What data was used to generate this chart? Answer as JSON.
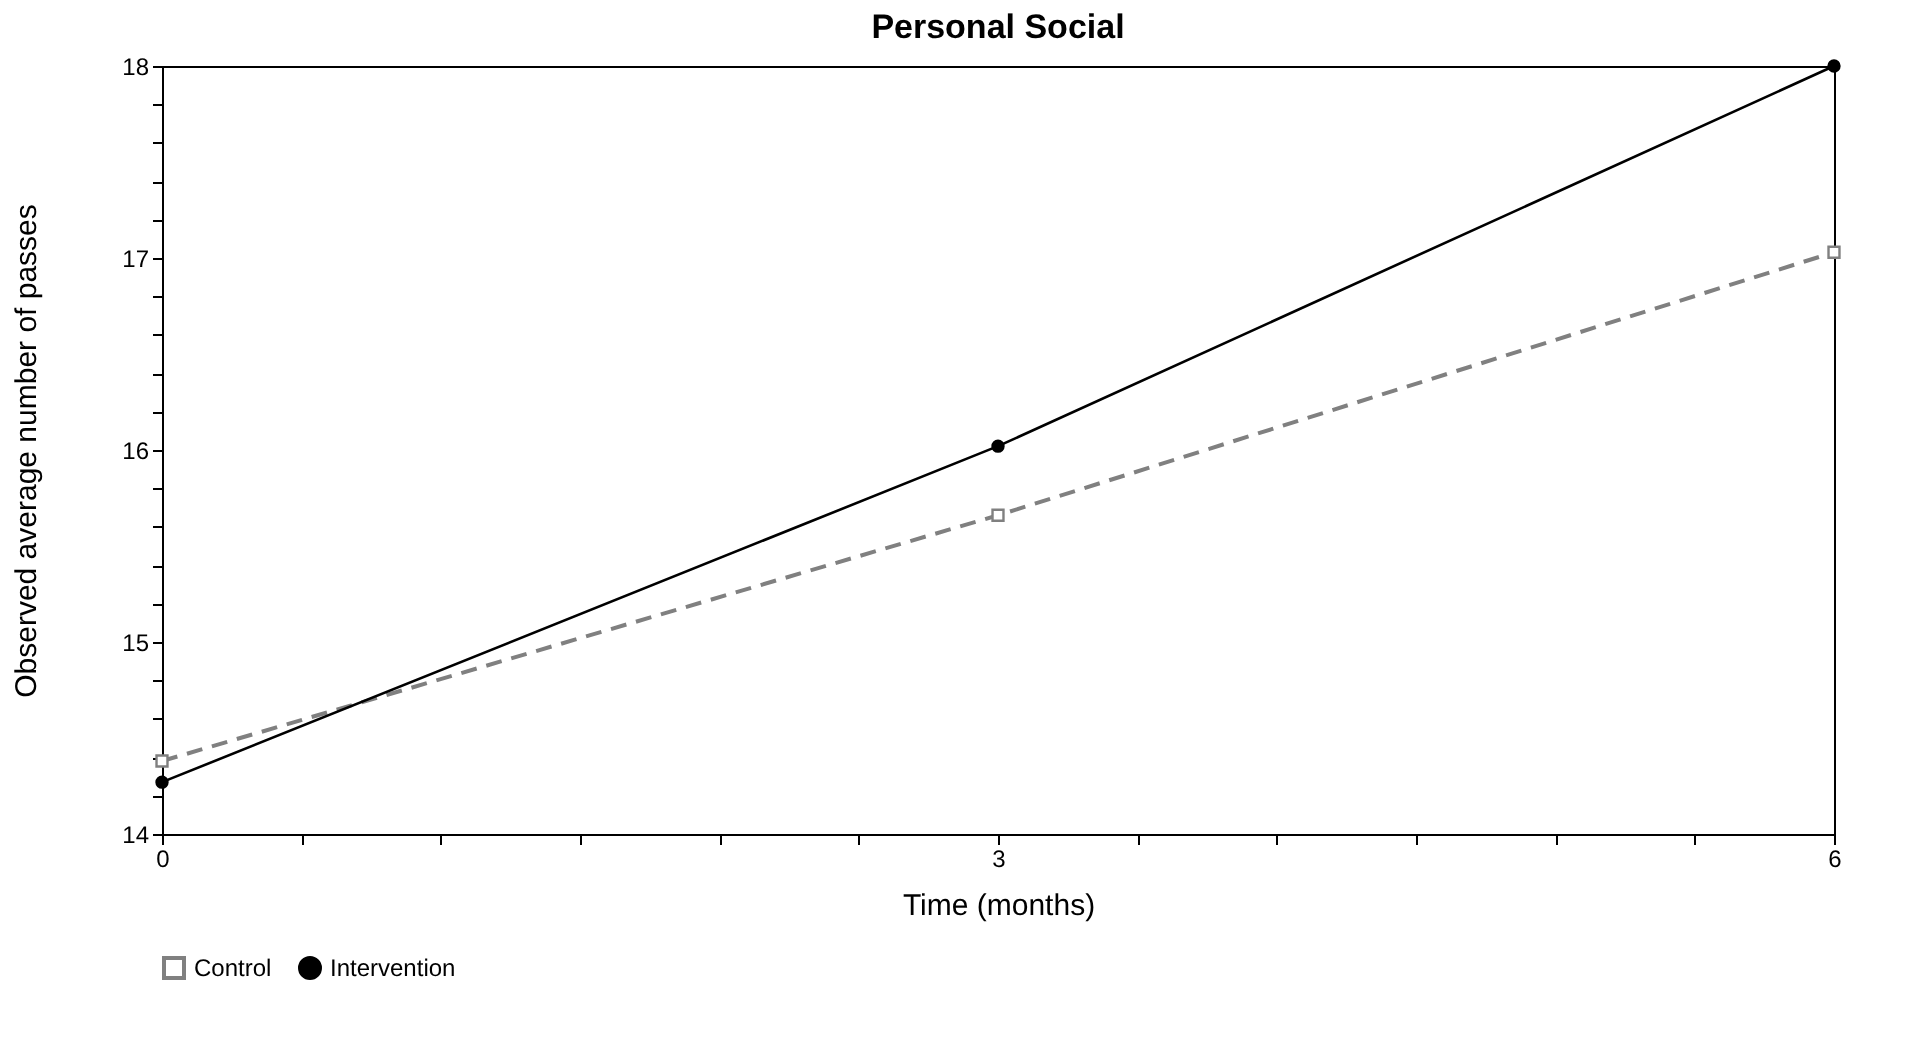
{
  "chart_data": {
    "type": "line",
    "title": "Personal Social",
    "xlabel": "Time (months)",
    "ylabel": "Observed average number of passes",
    "x": [
      0,
      3,
      6
    ],
    "series": [
      {
        "name": "Control",
        "color": "#808080",
        "values": [
          14.38,
          15.66,
          17.03
        ],
        "marker": "square",
        "line_style": "dashed"
      },
      {
        "name": "Intervention",
        "color": "#000000",
        "values": [
          14.27,
          16.02,
          18.0
        ],
        "marker": "circle",
        "line_style": "solid"
      }
    ],
    "xlim": [
      0,
      6
    ],
    "xticks": [
      0,
      {
        "value": 0.5,
        "label": null
      },
      {
        "value": 1,
        "label": null
      },
      {
        "value": 1.5,
        "label": null
      },
      {
        "value": 2,
        "label": null
      },
      {
        "value": 2.5,
        "label": null
      },
      3,
      {
        "value": 3.5,
        "label": null
      },
      {
        "value": 4,
        "label": null
      },
      {
        "value": 4.5,
        "label": null
      },
      {
        "value": 5,
        "label": null
      },
      {
        "value": 5.5,
        "label": null
      },
      6
    ],
    "ylim": [
      14,
      18
    ],
    "yticks": [
      14,
      {
        "value": 14.2,
        "label": null
      },
      {
        "value": 14.4,
        "label": null
      },
      {
        "value": 14.6,
        "label": null
      },
      {
        "value": 14.8,
        "label": null
      },
      15,
      {
        "value": 15.2,
        "label": null
      },
      {
        "value": 15.4,
        "label": null
      },
      {
        "value": 15.6,
        "label": null
      },
      {
        "value": 15.8,
        "label": null
      },
      16,
      {
        "value": 16.2,
        "label": null
      },
      {
        "value": 16.4,
        "label": null
      },
      {
        "value": 16.6,
        "label": null
      },
      {
        "value": 16.8,
        "label": null
      },
      17,
      {
        "value": 17.2,
        "label": null
      },
      {
        "value": 17.4,
        "label": null
      },
      {
        "value": 17.6,
        "label": null
      },
      {
        "value": 17.8,
        "label": null
      },
      18
    ],
    "grid": false,
    "legend": "bottom"
  }
}
